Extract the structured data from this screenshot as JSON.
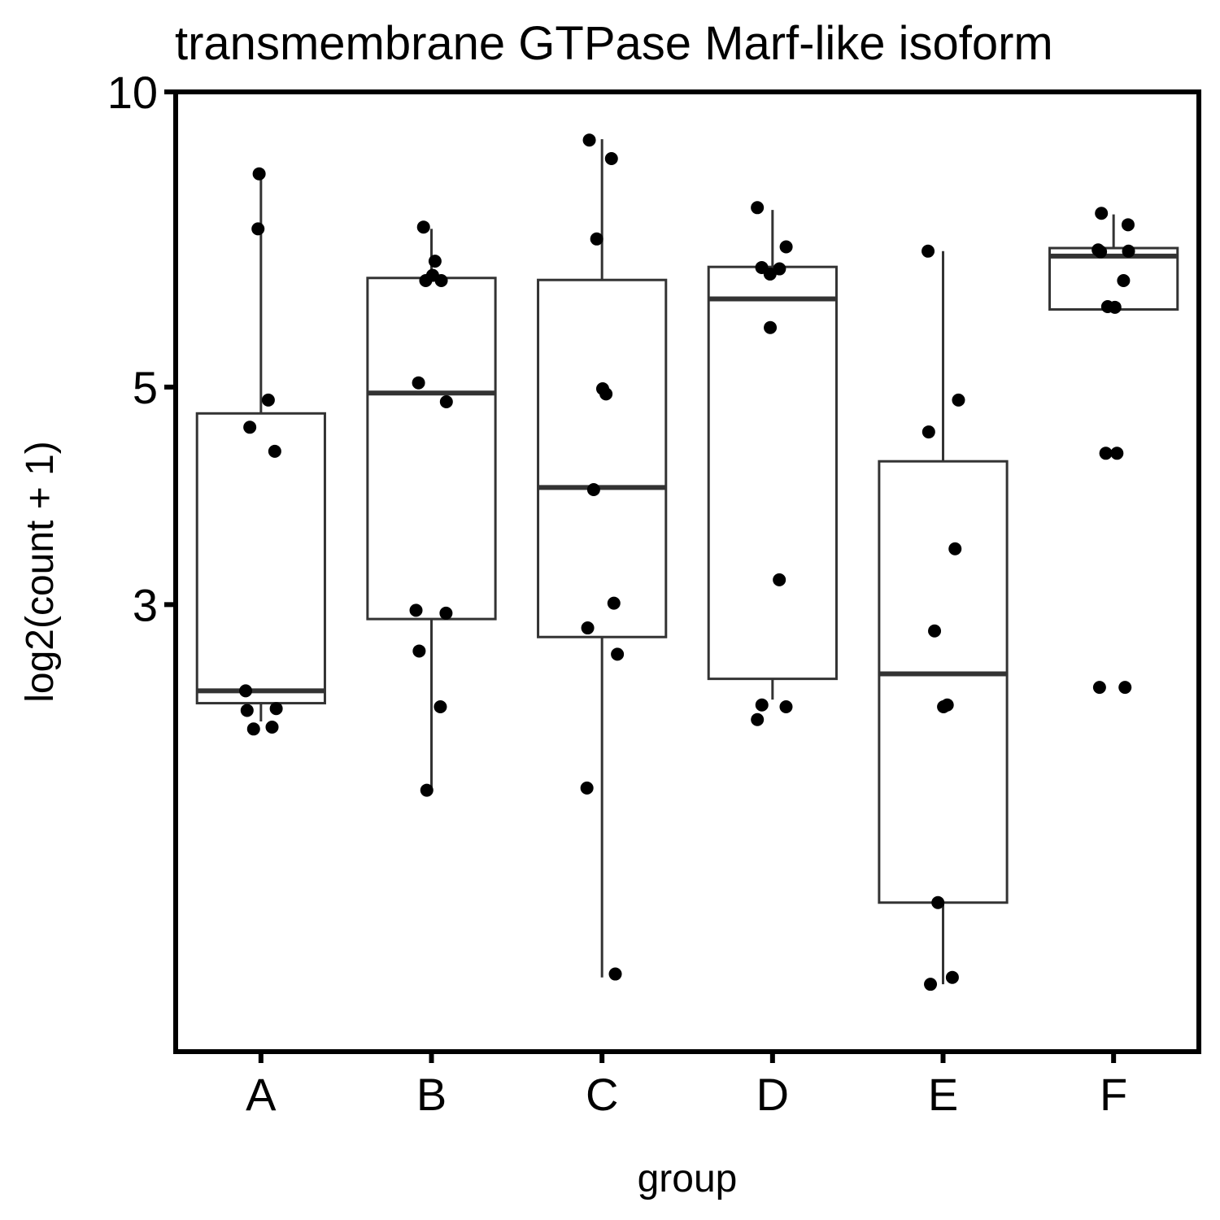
{
  "chart_data": {
    "type": "box",
    "title": "transmembrane GTPase Marf-like isoform",
    "xlabel": "group",
    "ylabel": "log2(count + 1)",
    "y_scale": "log",
    "ylim": [
      1.05,
      10
    ],
    "yticks": [
      3,
      5,
      10
    ],
    "grid": false,
    "categories": [
      "A",
      "B",
      "C",
      "D",
      "E",
      "F"
    ],
    "boxes": [
      {
        "group": "A",
        "min": 2.28,
        "q1": 2.38,
        "median": 2.45,
        "q3": 4.7,
        "max": 8.2
      },
      {
        "group": "B",
        "min": 1.95,
        "q1": 2.9,
        "median": 4.93,
        "q3": 6.46,
        "max": 7.25
      },
      {
        "group": "C",
        "min": 1.25,
        "q1": 2.78,
        "median": 3.95,
        "q3": 6.43,
        "max": 8.95
      },
      {
        "group": "D",
        "min": 2.4,
        "q1": 2.52,
        "median": 6.15,
        "q3": 6.63,
        "max": 7.58
      },
      {
        "group": "E",
        "min": 1.23,
        "q1": 1.49,
        "median": 2.55,
        "q3": 4.2,
        "max": 6.88
      },
      {
        "group": "F",
        "min": 6.0,
        "q1": 6.0,
        "median": 6.8,
        "q3": 6.93,
        "max": 7.5
      }
    ],
    "points": [
      {
        "group": "A",
        "values": [
          8.25,
          7.25,
          4.85,
          4.55,
          4.3,
          2.45,
          2.35,
          2.34,
          2.25,
          2.24
        ]
      },
      {
        "group": "B",
        "values": [
          7.28,
          6.72,
          6.5,
          6.42,
          6.42,
          5.05,
          4.83,
          2.96,
          2.94,
          2.69,
          2.36,
          1.94
        ]
      },
      {
        "group": "C",
        "values": [
          8.93,
          8.55,
          7.08,
          4.98,
          4.92,
          3.93,
          3.01,
          2.84,
          2.67,
          1.95,
          1.26
        ]
      },
      {
        "group": "D",
        "values": [
          7.62,
          6.95,
          6.62,
          6.6,
          6.52,
          5.75,
          3.18,
          2.37,
          2.36,
          2.29
        ]
      },
      {
        "group": "E",
        "values": [
          6.88,
          4.85,
          4.5,
          3.42,
          2.82,
          2.37,
          2.36,
          1.49,
          1.25,
          1.23
        ]
      },
      {
        "group": "F",
        "values": [
          7.52,
          7.32,
          6.9,
          6.88,
          6.87,
          6.42,
          6.04,
          6.03,
          4.28,
          4.28,
          2.47,
          2.47
        ]
      }
    ]
  }
}
